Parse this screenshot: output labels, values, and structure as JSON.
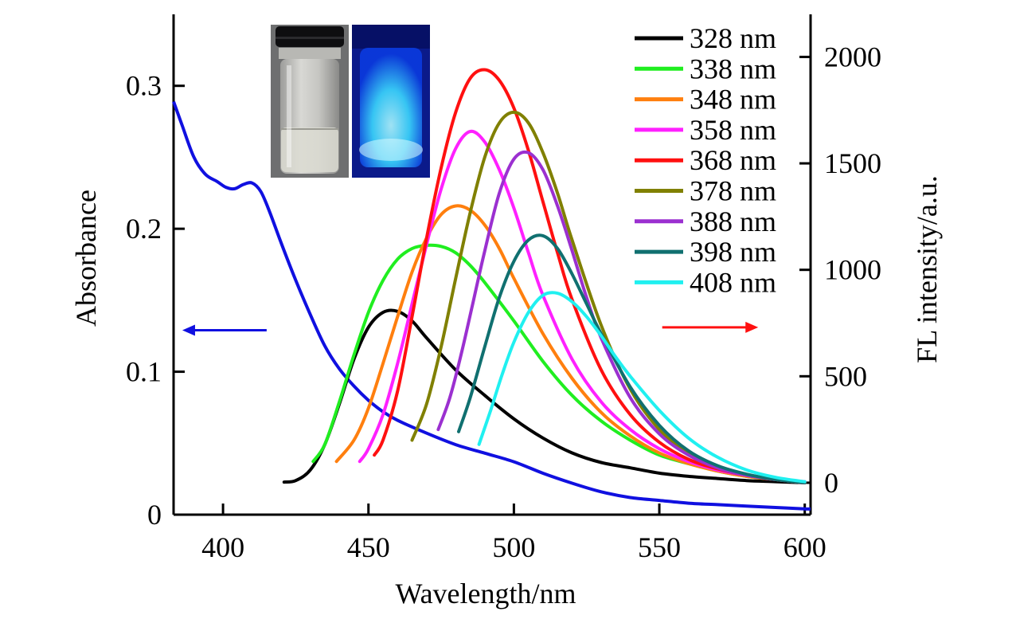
{
  "chart_data": {
    "type": "line",
    "xlabel": "Wavelength/nm",
    "ylabel_left": "Absorbance",
    "ylabel_right": "FL intensity/a.u.",
    "xlim": [
      383,
      602
    ],
    "ylim_left": [
      0,
      0.35
    ],
    "ylim_right": [
      -150,
      2200
    ],
    "x_ticks": [
      400,
      450,
      500,
      550,
      600
    ],
    "x_tick_labels": [
      "400",
      "450",
      "500",
      "550",
      "600"
    ],
    "y_left_ticks": [
      0,
      0.1,
      0.2,
      0.3
    ],
    "y_left_tick_labels": [
      "0",
      "0.1",
      "0.2",
      "0.3"
    ],
    "y_right_ticks": [
      0,
      500,
      1000,
      1500,
      2000
    ],
    "y_right_tick_labels": [
      "0",
      "500",
      "1000",
      "1500",
      "2000"
    ],
    "grid": false,
    "legend_position": "top-right",
    "absorbance_series": {
      "name": "Absorbance",
      "axis": "left",
      "color": "#1010e0",
      "x": [
        383,
        386,
        390,
        394,
        398,
        401,
        404,
        407,
        410,
        413,
        416,
        420,
        425,
        430,
        435,
        440,
        445,
        450,
        455,
        460,
        470,
        480,
        490,
        500,
        510,
        520,
        530,
        540,
        550,
        560,
        570,
        580,
        590,
        600,
        602
      ],
      "y": [
        0.289,
        0.272,
        0.25,
        0.238,
        0.233,
        0.229,
        0.228,
        0.231,
        0.232,
        0.226,
        0.212,
        0.19,
        0.164,
        0.14,
        0.118,
        0.102,
        0.09,
        0.08,
        0.072,
        0.066,
        0.057,
        0.049,
        0.043,
        0.037,
        0.029,
        0.022,
        0.016,
        0.012,
        0.01,
        0.008,
        0.007,
        0.006,
        0.005,
        0.004,
        0.004
      ]
    },
    "series": [
      {
        "name": "328 nm",
        "color": "#000000",
        "axis": "right",
        "x": [
          421,
          425,
          430,
          435,
          440,
          445,
          450,
          455,
          460,
          465,
          470,
          480,
          490,
          500,
          510,
          520,
          530,
          540,
          550,
          560,
          570,
          580,
          590,
          600
        ],
        "y": [
          3,
          10,
          60,
          180,
          370,
          580,
          730,
          800,
          805,
          760,
          680,
          530,
          410,
          300,
          210,
          140,
          95,
          70,
          45,
          30,
          20,
          10,
          5,
          0
        ]
      },
      {
        "name": "338 nm",
        "color": "#20ee20",
        "axis": "right",
        "x": [
          431,
          435,
          440,
          445,
          450,
          455,
          460,
          465,
          470,
          475,
          480,
          485,
          490,
          500,
          510,
          520,
          530,
          540,
          550,
          560,
          570,
          580,
          590,
          600
        ],
        "y": [
          100,
          180,
          380,
          600,
          800,
          950,
          1050,
          1100,
          1115,
          1110,
          1080,
          1020,
          940,
          760,
          570,
          410,
          290,
          200,
          130,
          90,
          55,
          30,
          15,
          0
        ]
      },
      {
        "name": "348 nm",
        "color": "#ff7f0e",
        "axis": "right",
        "x": [
          439,
          445,
          450,
          455,
          460,
          465,
          470,
          475,
          480,
          485,
          490,
          495,
          500,
          510,
          520,
          530,
          540,
          550,
          560,
          570,
          580,
          590,
          600
        ],
        "y": [
          100,
          200,
          350,
          560,
          780,
          990,
          1150,
          1260,
          1300,
          1280,
          1210,
          1100,
          960,
          700,
          490,
          330,
          220,
          140,
          90,
          55,
          30,
          15,
          0
        ]
      },
      {
        "name": "358 nm",
        "color": "#ff20ff",
        "axis": "right",
        "x": [
          447,
          450,
          455,
          460,
          465,
          470,
          475,
          480,
          485,
          490,
          495,
          500,
          505,
          510,
          520,
          530,
          540,
          550,
          560,
          570,
          580,
          590,
          600
        ],
        "y": [
          100,
          160,
          320,
          560,
          840,
          1120,
          1380,
          1570,
          1650,
          1600,
          1470,
          1290,
          1080,
          880,
          580,
          380,
          250,
          160,
          100,
          60,
          35,
          15,
          5
        ]
      },
      {
        "name": "368 nm",
        "color": "#ff1010",
        "axis": "right",
        "x": [
          452,
          455,
          460,
          465,
          470,
          475,
          480,
          485,
          490,
          495,
          500,
          505,
          510,
          515,
          520,
          530,
          540,
          550,
          560,
          570,
          580,
          590,
          600
        ],
        "y": [
          130,
          200,
          430,
          780,
          1150,
          1480,
          1740,
          1900,
          1940,
          1890,
          1760,
          1560,
          1320,
          1080,
          860,
          530,
          320,
          190,
          110,
          65,
          35,
          15,
          0
        ]
      },
      {
        "name": "378 nm",
        "color": "#808000",
        "axis": "right",
        "x": [
          465,
          470,
          475,
          480,
          485,
          490,
          495,
          500,
          505,
          510,
          515,
          520,
          530,
          540,
          550,
          560,
          570,
          580,
          590,
          600
        ],
        "y": [
          200,
          370,
          640,
          960,
          1270,
          1530,
          1690,
          1740,
          1690,
          1550,
          1360,
          1140,
          740,
          440,
          250,
          140,
          75,
          35,
          15,
          0
        ]
      },
      {
        "name": "388 nm",
        "color": "#9b30d0",
        "axis": "right",
        "x": [
          474,
          478,
          482,
          486,
          490,
          495,
          500,
          505,
          510,
          515,
          520,
          525,
          530,
          540,
          550,
          560,
          570,
          580,
          590,
          600
        ],
        "y": [
          250,
          400,
          610,
          850,
          1090,
          1360,
          1520,
          1550,
          1470,
          1300,
          1090,
          870,
          680,
          400,
          230,
          130,
          70,
          35,
          15,
          0
        ]
      },
      {
        "name": "398 nm",
        "color": "#107070",
        "axis": "right",
        "x": [
          481,
          485,
          490,
          495,
          500,
          505,
          510,
          515,
          520,
          525,
          530,
          540,
          550,
          560,
          570,
          580,
          590,
          600
        ],
        "y": [
          240,
          400,
          640,
          870,
          1040,
          1140,
          1160,
          1100,
          980,
          840,
          700,
          450,
          270,
          150,
          80,
          40,
          15,
          0
        ]
      },
      {
        "name": "408 nm",
        "color": "#20f0f0",
        "axis": "right",
        "x": [
          488,
          492,
          496,
          500,
          505,
          510,
          515,
          520,
          525,
          530,
          535,
          540,
          550,
          560,
          570,
          580,
          590,
          600
        ],
        "y": [
          180,
          340,
          510,
          660,
          800,
          880,
          890,
          850,
          780,
          690,
          590,
          500,
          340,
          210,
          120,
          60,
          25,
          5
        ]
      }
    ],
    "annotations": {
      "absorbance_arrow": {
        "direction": "left",
        "color": "#1010e0",
        "axis": "left",
        "x_from": 415,
        "x_to": 386,
        "y": 0.129
      },
      "fl_arrow": {
        "direction": "right",
        "color": "#ff1010",
        "axis": "right",
        "x_from": 551,
        "x_to": 584,
        "y": 730
      },
      "inset": "two vial photos: under ambient light and under UV light"
    }
  }
}
